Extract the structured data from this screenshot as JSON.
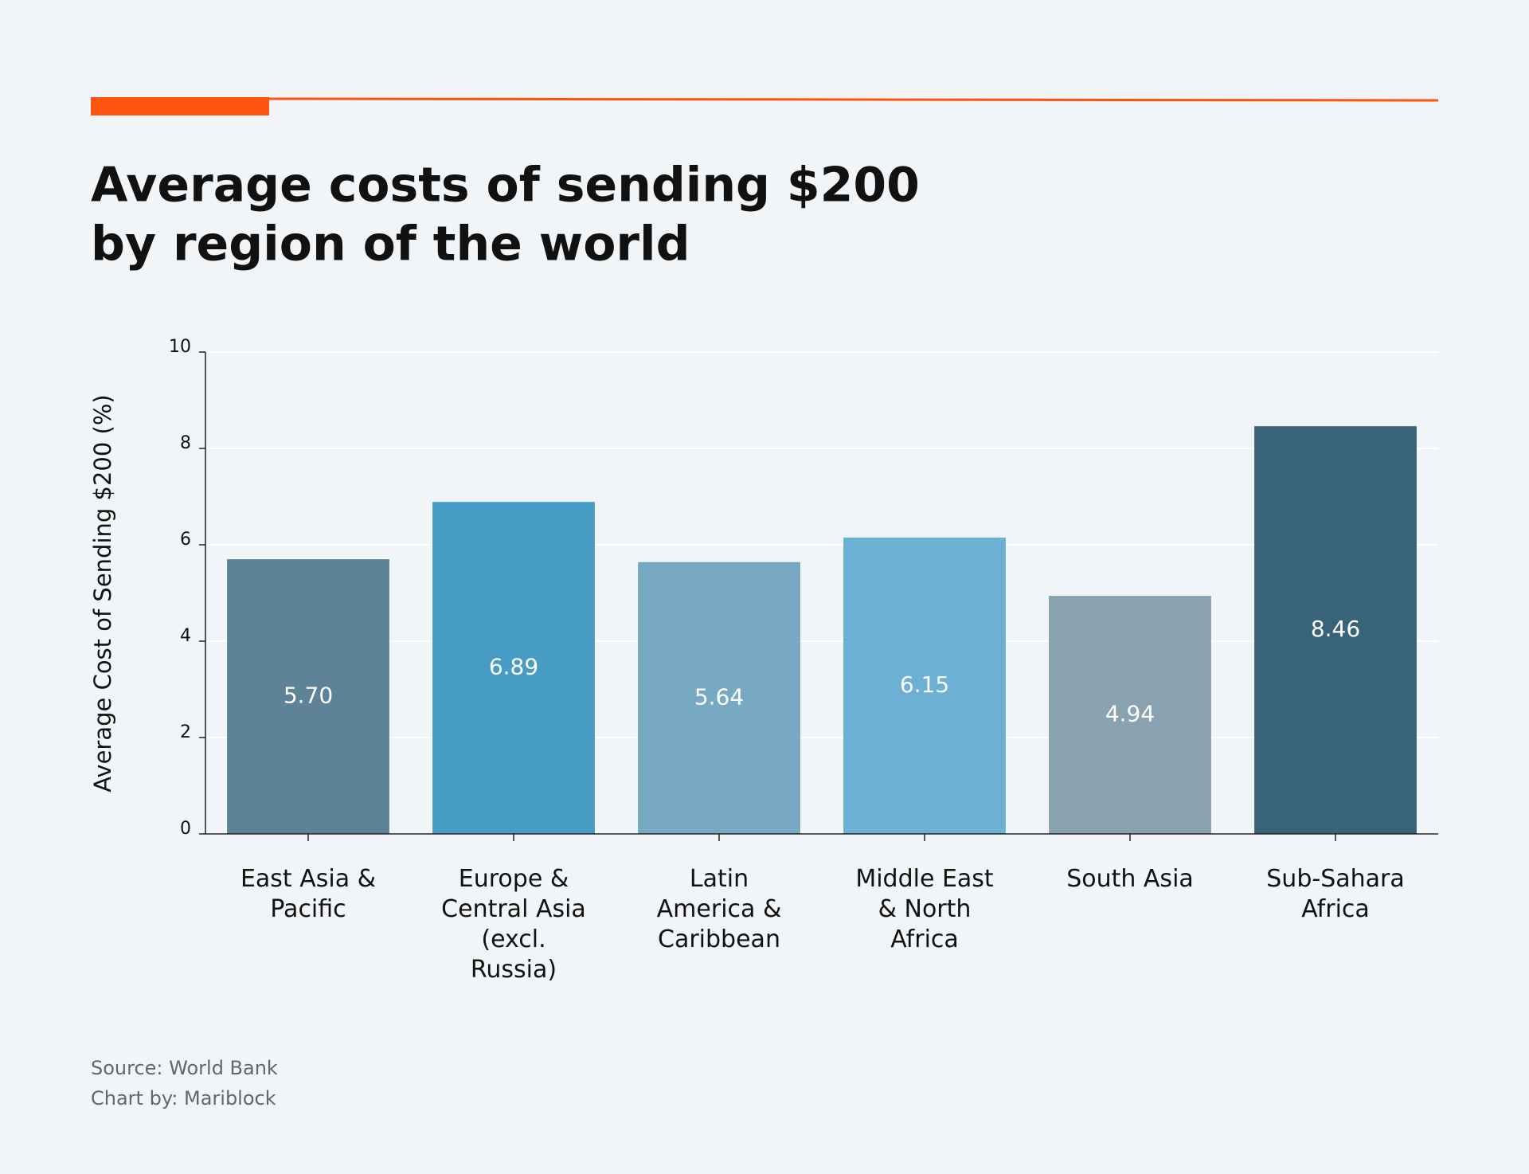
{
  "chart_data": {
    "type": "bar",
    "title": "Average costs of sending $200",
    "subtitle": "by region of the world",
    "y_label": "Average Cost of Sending $200 (%)",
    "categories": [
      "East Asia & Pacific",
      "Europe & Central Asia (excl. Russia)",
      "Latin America & Caribbean",
      "Middle East & North Africa",
      "South Asia",
      "Sub-Sahara Africa"
    ],
    "values": [
      5.7,
      6.89,
      5.64,
      6.15,
      4.94,
      8.46
    ],
    "value_labels": [
      "5.70",
      "6.89",
      "5.64",
      "6.15",
      "4.94",
      "8.46"
    ],
    "colors": [
      "#5f8396",
      "#479cc6",
      "#78a9c2",
      "#6cb0d3",
      "#89a2af",
      "#386379"
    ],
    "ylim": [
      0,
      10
    ],
    "yticks": [
      0,
      2,
      4,
      6,
      8,
      10
    ],
    "grid": true,
    "source": "Source: World Bank",
    "credit": "Chart by: Mariblock"
  }
}
